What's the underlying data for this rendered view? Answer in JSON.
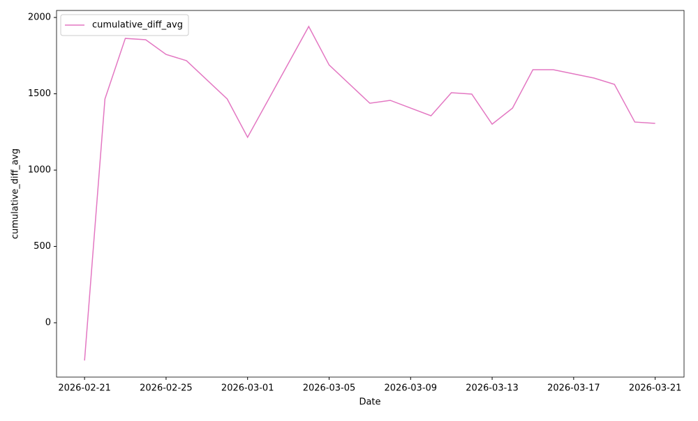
{
  "chart_data": {
    "type": "line",
    "xlabel": "Date",
    "ylabel": "cumulative_diff_avg",
    "x": [
      "2026-02-21",
      "2026-02-22",
      "2026-02-23",
      "2026-02-24",
      "2026-02-25",
      "2026-02-26",
      "2026-02-28",
      "2026-03-01",
      "2026-03-04",
      "2026-03-05",
      "2026-03-07",
      "2026-03-08",
      "2026-03-10",
      "2026-03-11",
      "2026-03-12",
      "2026-03-13",
      "2026-03-14",
      "2026-03-15",
      "2026-03-16",
      "2026-03-18",
      "2026-03-19",
      "2026-03-20",
      "2026-03-21"
    ],
    "series": [
      {
        "name": "cumulative_diff_avg",
        "color": "#e377c2",
        "values": [
          -247,
          1466,
          1863,
          1854,
          1758,
          1717,
          1466,
          1215,
          1941,
          1689,
          1438,
          1457,
          1356,
          1507,
          1498,
          1301,
          1406,
          1658,
          1658,
          1603,
          1562,
          1315,
          1306
        ]
      }
    ],
    "xlim": [
      "2026-02-19T15:00",
      "2026-03-22T10:00"
    ],
    "xticks": [
      "2026-02-21",
      "2026-02-25",
      "2026-03-01",
      "2026-03-05",
      "2026-03-09",
      "2026-03-13",
      "2026-03-17",
      "2026-03-21"
    ],
    "ylim": [
      -356,
      2046
    ],
    "yticks": [
      0,
      500,
      1000,
      1500,
      2000
    ],
    "grid": false,
    "legend": "upper-left"
  }
}
